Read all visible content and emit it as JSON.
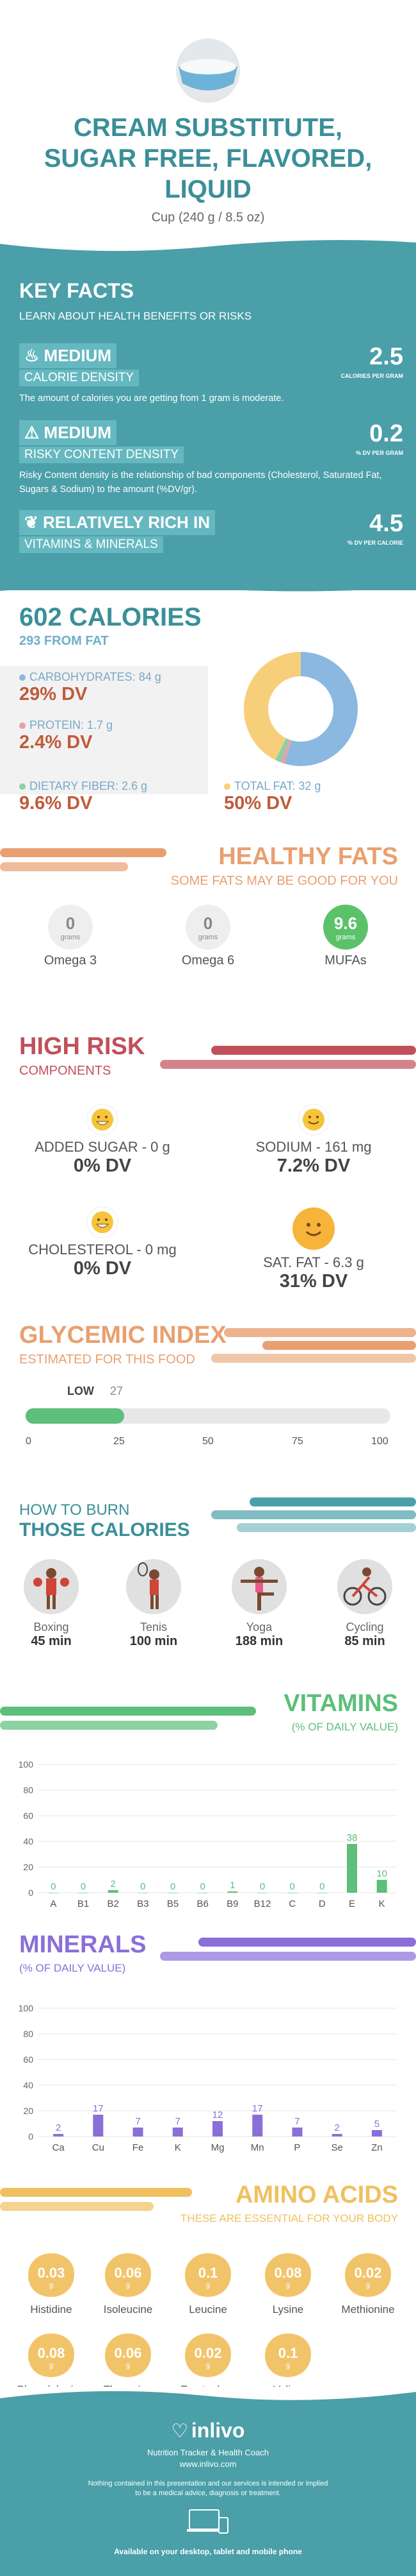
{
  "header": {
    "title_lines": [
      "CREAM SUBSTITUTE,",
      "SUGAR FREE, FLAVORED,",
      "LIQUID"
    ],
    "serving": "Cup (240 g / 8.5 oz)"
  },
  "key_facts": {
    "title": "KEY FACTS",
    "subtitle": "LEARN ABOUT HEALTH BENEFITS OR RISKS",
    "items": [
      {
        "icon": "flame-icon",
        "level": "MEDIUM",
        "label": "CALORIE DENSITY",
        "desc": "The amount of calories you are getting from 1 gram is moderate.",
        "value": "2.5",
        "unit": "CALORIES PER GRAM"
      },
      {
        "icon": "warning-icon",
        "level": "MEDIUM",
        "label": "RISKY CONTENT DENSITY",
        "desc": "Risky Content density is the relationship of bad components (Cholesterol, Saturated Fat, Sugars & Sodium) to the amount (%DV/gr).",
        "value": "0.2",
        "unit": "% DV PER GRAM"
      },
      {
        "icon": "leaf-icon",
        "level": "RELATIVELY RICH  IN",
        "label": "VITAMINS & MINERALS",
        "desc": "",
        "value": "4.5",
        "unit": "% DV PER CALORIE"
      }
    ]
  },
  "calories": {
    "total": "602 CALORIES",
    "from_fat": "293 FROM FAT",
    "macros": [
      {
        "label": "CARBOHYDRATES: 84 g",
        "dv": "29% DV",
        "color": "#8ab8e0"
      },
      {
        "label": "PROTEIN: 1.7 g",
        "dv": "2.4% DV",
        "color": "#e8a0a8"
      },
      {
        "label": "DIETARY FIBER: 2.6 g",
        "dv": "9.6% DV",
        "color": "#8ccfa8"
      },
      {
        "label": "TOTAL FAT: 32 g",
        "dv": "50% DV",
        "color": "#f7cf7a"
      }
    ],
    "donut": [
      {
        "name": "carbs",
        "value": 0.546,
        "color": "#8ab8e0"
      },
      {
        "name": "protein",
        "value": 0.011,
        "color": "#e8a0a8"
      },
      {
        "name": "fiber",
        "value": 0.017,
        "color": "#8ccfa8"
      },
      {
        "name": "fat",
        "value": 0.426,
        "color": "#f7cf7a"
      }
    ]
  },
  "healthy_fats": {
    "title": "HEALTHY FATS",
    "subtitle": "SOME FATS MAY BE GOOD FOR YOU",
    "items": [
      {
        "value": "0",
        "unit": "grams",
        "name": "Omega 3",
        "highlight": false
      },
      {
        "value": "0",
        "unit": "grams",
        "name": "Omega 6",
        "highlight": false
      },
      {
        "value": "9.6",
        "unit": "grams",
        "name": "MUFAs",
        "highlight": true
      }
    ]
  },
  "high_risk": {
    "title": "HIGH RISK",
    "subtitle": "COMPONENTS",
    "items": [
      {
        "label": "ADDED SUGAR - 0 g",
        "dv": "0% DV",
        "face": "grin"
      },
      {
        "label": "SODIUM - 161 mg",
        "dv": "7.2% DV",
        "face": "smile"
      },
      {
        "label": "CHOLESTEROL - 0 mg",
        "dv": "0% DV",
        "face": "grin"
      },
      {
        "label": "SAT. FAT - 6.3 g",
        "dv": "31% DV",
        "face": "smile"
      }
    ]
  },
  "glycemic": {
    "title": "GLYCEMIC INDEX",
    "subtitle": "ESTIMATED FOR THIS FOOD",
    "level": "LOW",
    "value": 27,
    "ticks": [
      "0",
      "25",
      "50",
      "75",
      "100"
    ]
  },
  "burn": {
    "title_line1": "HOW TO BURN",
    "title_line2": "THOSE CALORIES",
    "activities": [
      {
        "name": "Boxing",
        "minutes": "45 min",
        "icon": "boxing-icon"
      },
      {
        "name": "Tenis",
        "minutes": "100 min",
        "icon": "tennis-icon"
      },
      {
        "name": "Yoga",
        "minutes": "188 min",
        "icon": "yoga-icon"
      },
      {
        "name": "Cycling",
        "minutes": "85 min",
        "icon": "cycling-icon"
      }
    ]
  },
  "chart_data": [
    {
      "type": "bar",
      "title": "VITAMINS",
      "subtitle": "(% OF DAILY VALUE)",
      "categories": [
        "A",
        "B1",
        "B2",
        "B3",
        "B5",
        "B6",
        "B9",
        "B12",
        "C",
        "D",
        "E",
        "K"
      ],
      "values": [
        0,
        0,
        2,
        0,
        0,
        0,
        1,
        0,
        0,
        0,
        38,
        10
      ],
      "ylim": [
        0,
        100
      ],
      "yticks": [
        "0",
        "20",
        "40",
        "60",
        "80",
        "100"
      ],
      "color": "#5cbf7a"
    },
    {
      "type": "bar",
      "title": "MINERALS",
      "subtitle": "(% OF DAILY VALUE)",
      "categories": [
        "Ca",
        "Cu",
        "Fe",
        "K",
        "Mg",
        "Mn",
        "P",
        "Se",
        "Zn"
      ],
      "values": [
        2,
        17,
        7,
        7,
        12,
        17,
        7,
        2,
        5
      ],
      "ylim": [
        0,
        100
      ],
      "yticks": [
        "0",
        "20",
        "40",
        "60",
        "80",
        "100"
      ],
      "color": "#8a6fd8"
    }
  ],
  "amino": {
    "title": "AMINO ACIDS",
    "subtitle": "THESE ARE ESSENTIAL FOR YOUR BODY",
    "items": [
      {
        "value": "0.03",
        "unit": "g",
        "name": "Histidine"
      },
      {
        "value": "0.06",
        "unit": "g",
        "name": "Isoleucine"
      },
      {
        "value": "0.1",
        "unit": "g",
        "name": "Leucine"
      },
      {
        "value": "0.08",
        "unit": "g",
        "name": "Lysine"
      },
      {
        "value": "0.02",
        "unit": "g",
        "name": "Methionine"
      },
      {
        "value": "0.08",
        "unit": "g",
        "name": "Phenylalanine"
      },
      {
        "value": "0.06",
        "unit": "g",
        "name": "Threonine"
      },
      {
        "value": "0.02",
        "unit": "g",
        "name": "Tryptophan"
      },
      {
        "value": "0.1",
        "unit": "g",
        "name": "Valine"
      }
    ]
  },
  "footer": {
    "brand": "inlivo",
    "tagline": "Nutrition Tracker & Health Coach",
    "url": "www.inlivo.com",
    "disclaimer_line1": "Nothing contained in this presentation and our services is intended or implied",
    "disclaimer_line2": "to be a medical advice, diagnosis or treatment.",
    "available": "Available on your desktop, tablet and mobile phone"
  },
  "colors": {
    "teal": "#4a9fa8",
    "orange": "#e8a070",
    "red": "#c0505a",
    "green": "#5cbf7a",
    "purple": "#8a6fd8",
    "yellow": "#f0c060"
  }
}
